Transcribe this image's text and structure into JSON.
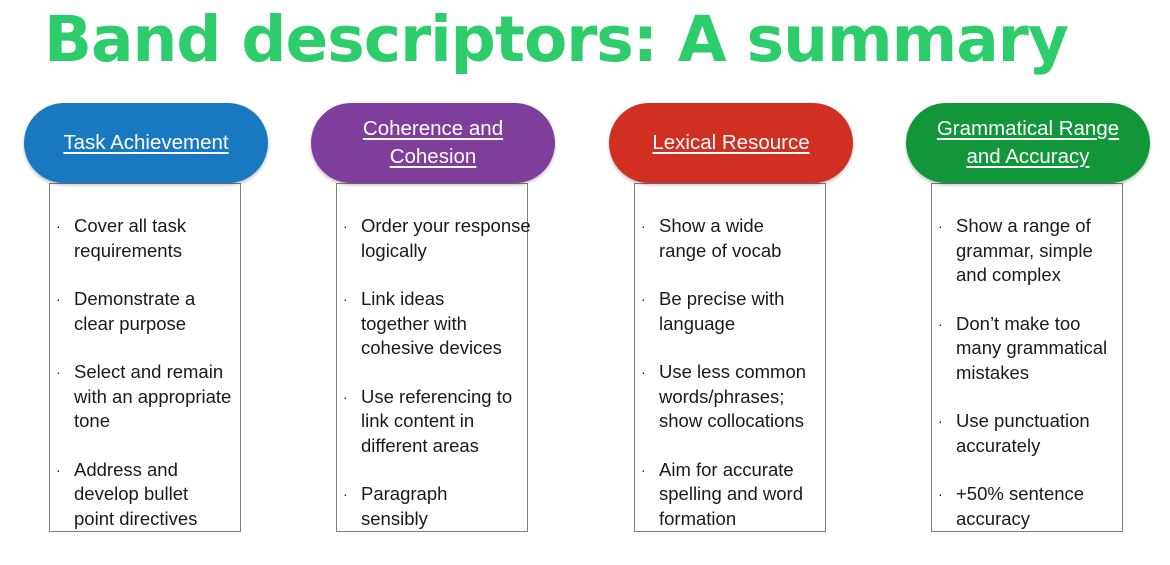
{
  "title": "Band descriptors: A summary",
  "columns": [
    {
      "heading": "Task Achievement",
      "bullets": [
        "Cover all task requirements",
        "Demonstrate a clear purpose",
        "Select and remain with an appropriate tone",
        "Address and develop bullet point directives"
      ]
    },
    {
      "heading": "Coherence and Cohesion",
      "bullets": [
        "Order your response logically",
        "Link ideas together with cohesive devices",
        "Use referencing to link content in different areas",
        "Paragraph sensibly"
      ]
    },
    {
      "heading": "Lexical Resource",
      "bullets": [
        "Show a wide range of vocab",
        "Be precise with language",
        "Use less common words/phrases; show collocations",
        "Aim for accurate spelling and word formation"
      ]
    },
    {
      "heading": "Grammatical Range and Accuracy",
      "bullets": [
        "Show a range of grammar, simple and complex",
        "Don’t make too many grammatical mistakes",
        "Use punctuation accurately",
        "+50% sentence accuracy"
      ]
    }
  ],
  "colors": {
    "title": "#2ccd6a",
    "task_achievement": "#1878c0",
    "coherence": "#7f3d9c",
    "lexical": "#d12f22",
    "grammatical": "#12963a"
  }
}
